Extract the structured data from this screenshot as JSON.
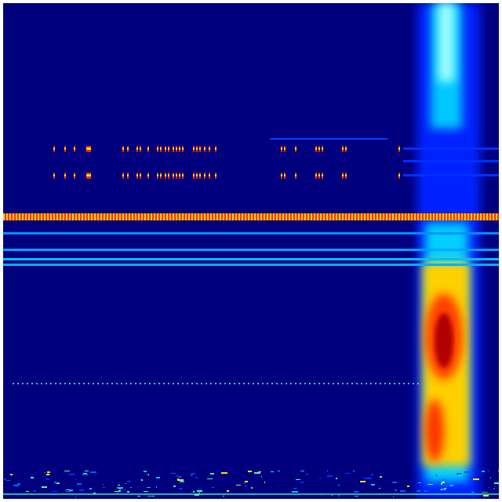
{
  "image": {
    "kind": "heatmap",
    "colormap": "jet",
    "colors": {
      "background": "#00007f",
      "low": "#0000ff",
      "mid_low": "#00bfff",
      "mid": "#7fff7f",
      "mid_high": "#ffbf00",
      "high": "#ff0000",
      "max": "#8b0000"
    }
  }
}
